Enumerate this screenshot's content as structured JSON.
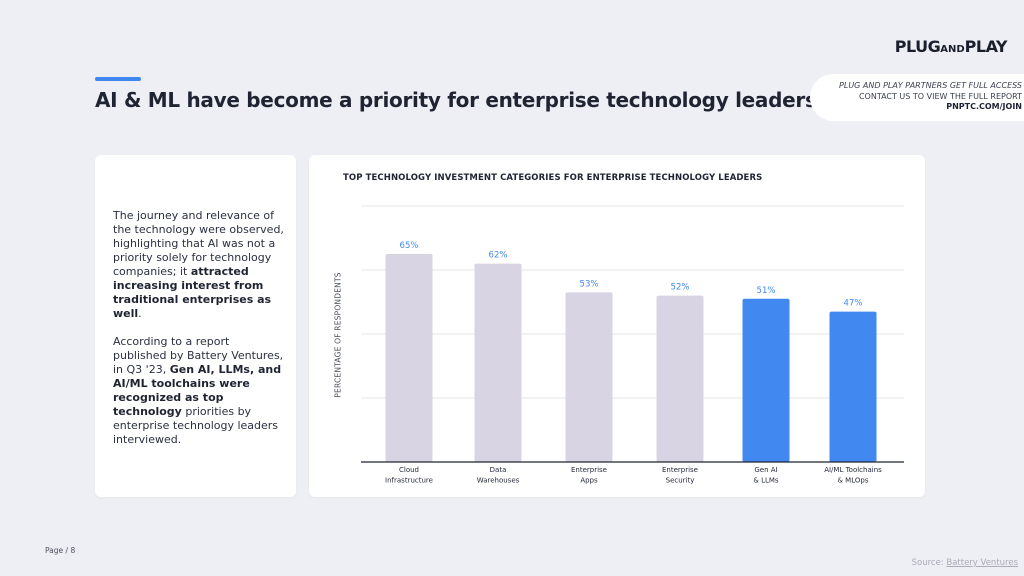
{
  "brand": {
    "logo_left": "PLUG",
    "logo_mid": "AND",
    "logo_right": "PLAY"
  },
  "header": {
    "title": "AI & ML have become a priority for enterprise technology leaders"
  },
  "promo": {
    "line1": "PLUG AND PLAY PARTNERS GET FULL ACCESS",
    "line2": "CONTACT US TO VIEW THE FULL REPORT",
    "line3": "PNPTC.COM/JOIN"
  },
  "left_panel": {
    "p1_plain": "The journey and relevance of the technology were observed, highlighting that AI was not a priority solely for technology companies; it ",
    "p1_bold": "attracted increasing interest from traditional enterprises as well",
    "p1_end": ".",
    "p2_start": "According to a report published by Battery Ventures, in Q3 '23, ",
    "p2_bold": "Gen AI, LLMs, and AI/ML toolchains were recognized as top technology",
    "p2_end": " priorities by enterprise technology leaders interviewed."
  },
  "chart_data": {
    "type": "bar",
    "title": "TOP TECHNOLOGY INVESTMENT CATEGORIES FOR ENTERPRISE TECHNOLOGY LEADERS",
    "ylabel": "PERCENTAGE OF RESPONDENTS",
    "xlabel": "",
    "ylim": [
      0,
      80
    ],
    "grid": true,
    "categories": [
      [
        "Cloud",
        "Infrastructure"
      ],
      [
        "Data",
        "Warehouses"
      ],
      [
        "Enterprise",
        "Apps"
      ],
      [
        "Enterprise",
        "Security"
      ],
      [
        "Gen AI",
        "& LLMs"
      ],
      [
        "AI/ML Toolchains",
        "& MLOps"
      ]
    ],
    "values": [
      65,
      62,
      53,
      52,
      51,
      47
    ],
    "value_labels": [
      "65%",
      "62%",
      "53%",
      "52%",
      "51%",
      "47%"
    ],
    "highlighted": [
      false,
      false,
      false,
      false,
      true,
      true
    ],
    "colors": {
      "default_bar": "#d8d4e3",
      "highlight_bar": "#4288f1",
      "label": "#4288f1",
      "grid": "#e3e4ea",
      "axis": "#1f2433"
    }
  },
  "footer": {
    "page_label": "Page / 8",
    "source_prefix": "Source: ",
    "source_link": "Battery Ventures"
  }
}
